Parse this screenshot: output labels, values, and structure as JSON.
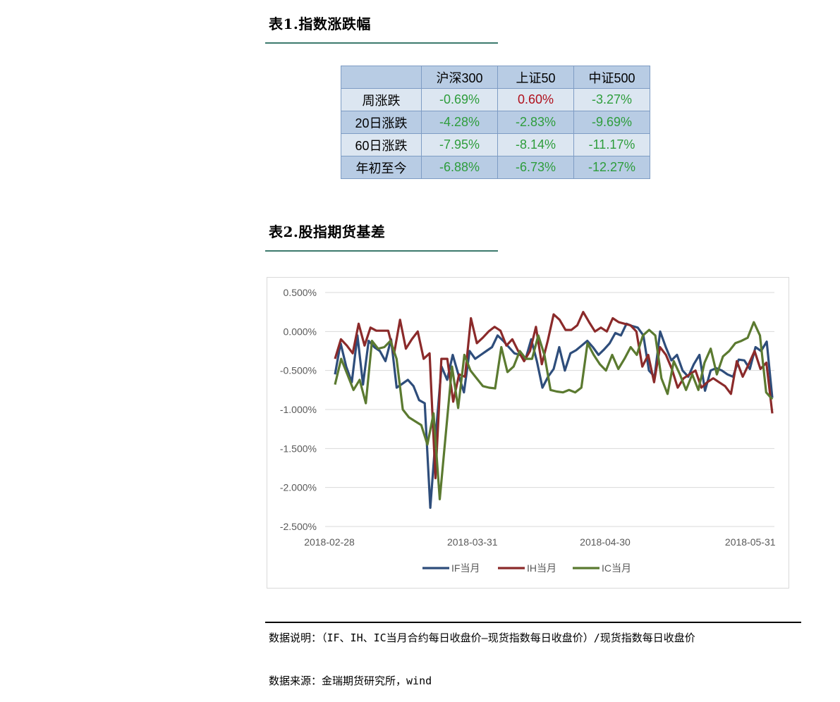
{
  "table1": {
    "title": "表1.指数涨跌幅",
    "headers": [
      "",
      "沪深300",
      "上证50",
      "中证500"
    ],
    "rows": [
      {
        "label": "周涨跌",
        "values": [
          "-0.69%",
          "0.60%",
          "-3.27%"
        ],
        "signs": [
          "neg",
          "pos",
          "neg"
        ]
      },
      {
        "label": "20日涨跌",
        "values": [
          "-4.28%",
          "-2.83%",
          "-9.69%"
        ],
        "signs": [
          "neg",
          "neg",
          "neg"
        ]
      },
      {
        "label": "60日涨跌",
        "values": [
          "-7.95%",
          "-8.14%",
          "-11.17%"
        ],
        "signs": [
          "neg",
          "neg",
          "neg"
        ]
      },
      {
        "label": "年初至今",
        "values": [
          "-6.88%",
          "-6.73%",
          "-12.27%"
        ],
        "signs": [
          "neg",
          "neg",
          "neg"
        ]
      }
    ]
  },
  "table2": {
    "title": "表2.股指期货基差"
  },
  "chart_data": {
    "type": "line",
    "y_ticks": [
      "0.500%",
      "0.000%",
      "-0.500%",
      "-1.000%",
      "-1.500%",
      "-2.000%",
      "-2.500%"
    ],
    "ylim": [
      -2.5,
      0.5
    ],
    "x_ticks": [
      "2018-02-28",
      "2018-03-31",
      "2018-04-30",
      "2018-05-31"
    ],
    "grid": true,
    "legend_position": "bottom",
    "series": [
      {
        "name": "IF当月",
        "color": "#2e4d7b",
        "values": [
          -0.55,
          -0.15,
          -0.45,
          -0.65,
          -0.05,
          -0.68,
          -0.12,
          -0.2,
          -0.25,
          -0.38,
          -0.1,
          -0.72,
          -0.67,
          -0.62,
          -0.7,
          -0.88,
          -0.92,
          -2.26,
          -1.3,
          -0.45,
          -0.62,
          -0.3,
          -0.55,
          -0.78,
          -0.25,
          -0.35,
          -0.3,
          -0.25,
          -0.2,
          -0.05,
          -0.12,
          -0.2,
          -0.28,
          -0.3,
          -0.35,
          -0.1,
          -0.38,
          -0.72,
          -0.58,
          -0.48,
          -0.2,
          -0.5,
          -0.28,
          -0.24,
          -0.18,
          -0.12,
          -0.2,
          -0.3,
          -0.23,
          -0.15,
          -0.02,
          -0.05,
          0.1,
          0.07,
          0.05,
          -0.05,
          -0.5,
          -0.58,
          0.0,
          -0.2,
          -0.37,
          -0.3,
          -0.5,
          -0.58,
          -0.42,
          -0.3,
          -0.76,
          -0.5,
          -0.47,
          -0.5,
          -0.55,
          -0.58,
          -0.36,
          -0.37,
          -0.48,
          -0.2,
          -0.25,
          -0.13,
          -0.85
        ]
      },
      {
        "name": "IH当月",
        "color": "#8b2a2a",
        "values": [
          -0.35,
          -0.1,
          -0.18,
          -0.28,
          0.1,
          -0.18,
          0.05,
          0.01,
          0.01,
          0.01,
          -0.28,
          0.15,
          -0.22,
          -0.1,
          0.0,
          -0.35,
          -0.28,
          -1.88,
          -0.35,
          -0.35,
          -0.9,
          -0.55,
          -0.58,
          0.17,
          -0.15,
          -0.08,
          0.0,
          0.06,
          0.01,
          -0.18,
          -0.1,
          -0.25,
          -0.38,
          -0.25,
          0.06,
          -0.42,
          -0.12,
          0.22,
          0.15,
          0.02,
          0.02,
          0.08,
          0.25,
          0.12,
          0.0,
          0.05,
          0.0,
          0.17,
          0.12,
          0.1,
          0.08,
          0.0,
          -0.45,
          -0.3,
          -0.65,
          -0.2,
          -0.3,
          -0.48,
          -0.72,
          -0.6,
          -0.55,
          -0.5,
          -0.72,
          -0.65,
          -0.6,
          -0.65,
          -0.7,
          -0.8,
          -0.38,
          -0.58,
          -0.42,
          -0.25,
          -0.48,
          -0.4,
          -1.05
        ]
      },
      {
        "name": "IC当月",
        "color": "#5b7a30",
        "values": [
          -0.68,
          -0.35,
          -0.55,
          -0.75,
          -0.62,
          -0.92,
          -0.12,
          -0.22,
          -0.2,
          -0.12,
          -0.35,
          -1.0,
          -1.1,
          -1.15,
          -1.2,
          -1.45,
          -1.05,
          -2.15,
          -1.3,
          -0.45,
          -0.98,
          -0.3,
          -0.5,
          -0.6,
          -0.7,
          -0.72,
          -0.73,
          -0.2,
          -0.52,
          -0.45,
          -0.25,
          -0.35,
          -0.35,
          -0.05,
          -0.3,
          -0.75,
          -0.77,
          -0.78,
          -0.75,
          -0.78,
          -0.72,
          -0.15,
          -0.3,
          -0.42,
          -0.5,
          -0.3,
          -0.48,
          -0.35,
          -0.2,
          -0.3,
          -0.05,
          0.02,
          -0.05,
          -0.6,
          -0.8,
          -0.38,
          -0.55,
          -0.75,
          -0.55,
          -0.75,
          -0.4,
          -0.22,
          -0.55,
          -0.32,
          -0.25,
          -0.15,
          -0.12,
          -0.08,
          0.12,
          -0.05,
          -0.78,
          -0.87
        ]
      }
    ]
  },
  "notes": {
    "explanation": "数据说明：（IF、IH、IC当月合约每日收盘价—现货指数每日收盘价）/现货指数每日收盘价",
    "source": "数据来源：金瑞期货研究所，wind"
  }
}
